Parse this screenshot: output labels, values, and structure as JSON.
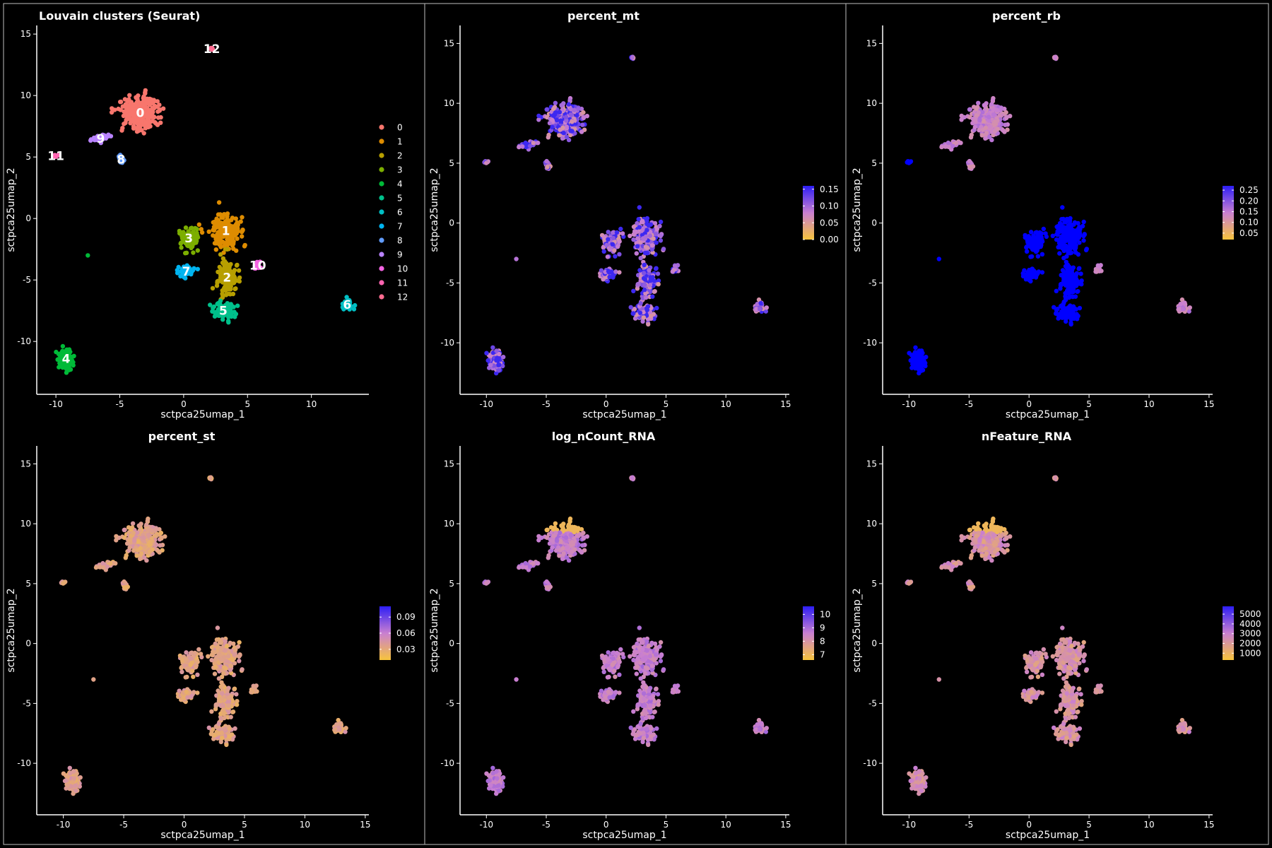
{
  "colors": {
    "background": "#000000",
    "foreground": "#ffffff",
    "panel_border": "#bfbfbf",
    "gradient_low": "#f7c43c",
    "gradient_mid": "#c97fd1",
    "gradient_high": "#2d1ef5",
    "saturated_high": "#0000ff"
  },
  "chart_data": [
    {
      "id": "clusters",
      "type": "scatter",
      "title": "Louvain clusters (Seurat)",
      "xlabel": "sctpca25umap_1",
      "ylabel": "sctpca25umap_2",
      "xlim": [
        -11.5,
        14.5
      ],
      "ylim": [
        -14.3,
        15.7
      ],
      "xticks": [
        -10,
        -5,
        0,
        5,
        10
      ],
      "yticks": [
        -10,
        -5,
        0,
        5,
        10,
        15
      ],
      "grid": false,
      "legend_placement": "right",
      "legend": [
        "0",
        "1",
        "2",
        "3",
        "4",
        "5",
        "6",
        "7",
        "8",
        "9",
        "10",
        "11",
        "12"
      ],
      "series": [
        {
          "name": "0",
          "color": "#f8766d",
          "center": [
            -3.4,
            8.6
          ]
        },
        {
          "name": "1",
          "color": "#de8c00",
          "center": [
            3.3,
            -1.0
          ]
        },
        {
          "name": "2",
          "color": "#b79f00",
          "center": [
            3.4,
            -4.8
          ]
        },
        {
          "name": "3",
          "color": "#7cae00",
          "center": [
            0.4,
            -1.6
          ]
        },
        {
          "name": "4",
          "color": "#00ba38",
          "center": [
            -9.2,
            -11.4
          ]
        },
        {
          "name": "5",
          "color": "#00c08b",
          "center": [
            3.1,
            -7.5
          ]
        },
        {
          "name": "6",
          "color": "#00bfc4",
          "center": [
            12.8,
            -7.0
          ]
        },
        {
          "name": "7",
          "color": "#00b4f0",
          "center": [
            0.2,
            -4.3
          ]
        },
        {
          "name": "8",
          "color": "#619cff",
          "center": [
            -4.9,
            4.8
          ]
        },
        {
          "name": "9",
          "color": "#b983ff",
          "center": [
            -6.5,
            6.5
          ]
        },
        {
          "name": "10",
          "color": "#f564e3",
          "center": [
            5.8,
            -3.8
          ]
        },
        {
          "name": "11",
          "color": "#ff64b0",
          "center": [
            -10.0,
            5.1
          ]
        },
        {
          "name": "12",
          "color": "#ff6c91",
          "center": [
            2.2,
            13.8
          ]
        }
      ]
    },
    {
      "id": "percent_mt",
      "type": "scatter",
      "title": "percent_mt",
      "xlabel": "sctpca25umap_1",
      "ylabel": "sctpca25umap_2",
      "xlim": [
        -12.2,
        15.3
      ],
      "ylim": [
        -14.3,
        16.5
      ],
      "xticks": [
        -10,
        -5,
        0,
        5,
        10,
        15
      ],
      "yticks": [
        -10,
        -5,
        0,
        5,
        10,
        15
      ],
      "grid": false,
      "legend_placement": "right",
      "colorbar": {
        "min": 0.0,
        "max": 0.16,
        "ticks": [
          "0.00",
          "0.05",
          "0.10",
          "0.15"
        ]
      },
      "typical_value": 0.09,
      "value_spread": 0.04,
      "high_fraction": 0.3
    },
    {
      "id": "percent_rb",
      "type": "scatter",
      "title": "percent_rb",
      "xlabel": "sctpca25umap_1",
      "ylabel": "sctpca25umap_2",
      "xlim": [
        -12.2,
        15.3
      ],
      "ylim": [
        -14.3,
        16.5
      ],
      "xticks": [
        -10,
        -5,
        0,
        5,
        10,
        15
      ],
      "yticks": [
        -10,
        -5,
        0,
        5,
        10,
        15
      ],
      "grid": false,
      "legend_placement": "right",
      "colorbar": {
        "min": 0.02,
        "max": 0.27,
        "ticks": [
          "0.05",
          "0.10",
          "0.15",
          "0.20",
          "0.25"
        ]
      },
      "high_clusters": [
        "1",
        "2",
        "3",
        "4",
        "5",
        "7",
        "11"
      ],
      "typical_value": 0.14,
      "value_spread": 0.03
    },
    {
      "id": "percent_st",
      "type": "scatter",
      "title": "percent_st",
      "xlabel": "sctpca25umap_1",
      "ylabel": "sctpca25umap_2",
      "xlim": [
        -12.2,
        15.3
      ],
      "ylim": [
        -14.3,
        16.5
      ],
      "xticks": [
        -10,
        -5,
        0,
        5,
        10,
        15
      ],
      "yticks": [
        -10,
        -5,
        0,
        5,
        10,
        15
      ],
      "grid": false,
      "legend_placement": "right",
      "colorbar": {
        "min": 0.01,
        "max": 0.11,
        "ticks": [
          "0.03",
          "0.06",
          "0.09"
        ]
      },
      "typical_value": 0.035,
      "value_spread": 0.012
    },
    {
      "id": "log_nCount_RNA",
      "type": "scatter",
      "title": "log_nCount_RNA",
      "xlabel": "sctpca25umap_1",
      "ylabel": "sctpca25umap_2",
      "xlim": [
        -12.2,
        15.3
      ],
      "ylim": [
        -14.3,
        16.5
      ],
      "xticks": [
        -10,
        -5,
        0,
        5,
        10,
        15
      ],
      "yticks": [
        -10,
        -5,
        0,
        5,
        10,
        15
      ],
      "grid": false,
      "legend_placement": "right",
      "colorbar": {
        "min": 6.6,
        "max": 10.6,
        "ticks": [
          "7",
          "8",
          "9",
          "10"
        ]
      },
      "typical_value": 8.6,
      "value_spread": 0.5
    },
    {
      "id": "nFeature_RNA",
      "type": "scatter",
      "title": "nFeature_RNA",
      "xlabel": "sctpca25umap_1",
      "ylabel": "sctpca25umap_2",
      "xlim": [
        -12.2,
        15.3
      ],
      "ylim": [
        -14.3,
        16.5
      ],
      "xticks": [
        -10,
        -5,
        0,
        5,
        10,
        15
      ],
      "yticks": [
        -10,
        -5,
        0,
        5,
        10,
        15
      ],
      "grid": false,
      "legend_placement": "right",
      "colorbar": {
        "min": 300,
        "max": 5800,
        "ticks": [
          "1000",
          "2000",
          "3000",
          "4000",
          "5000"
        ]
      },
      "typical_value": 2300,
      "value_spread": 800
    }
  ]
}
